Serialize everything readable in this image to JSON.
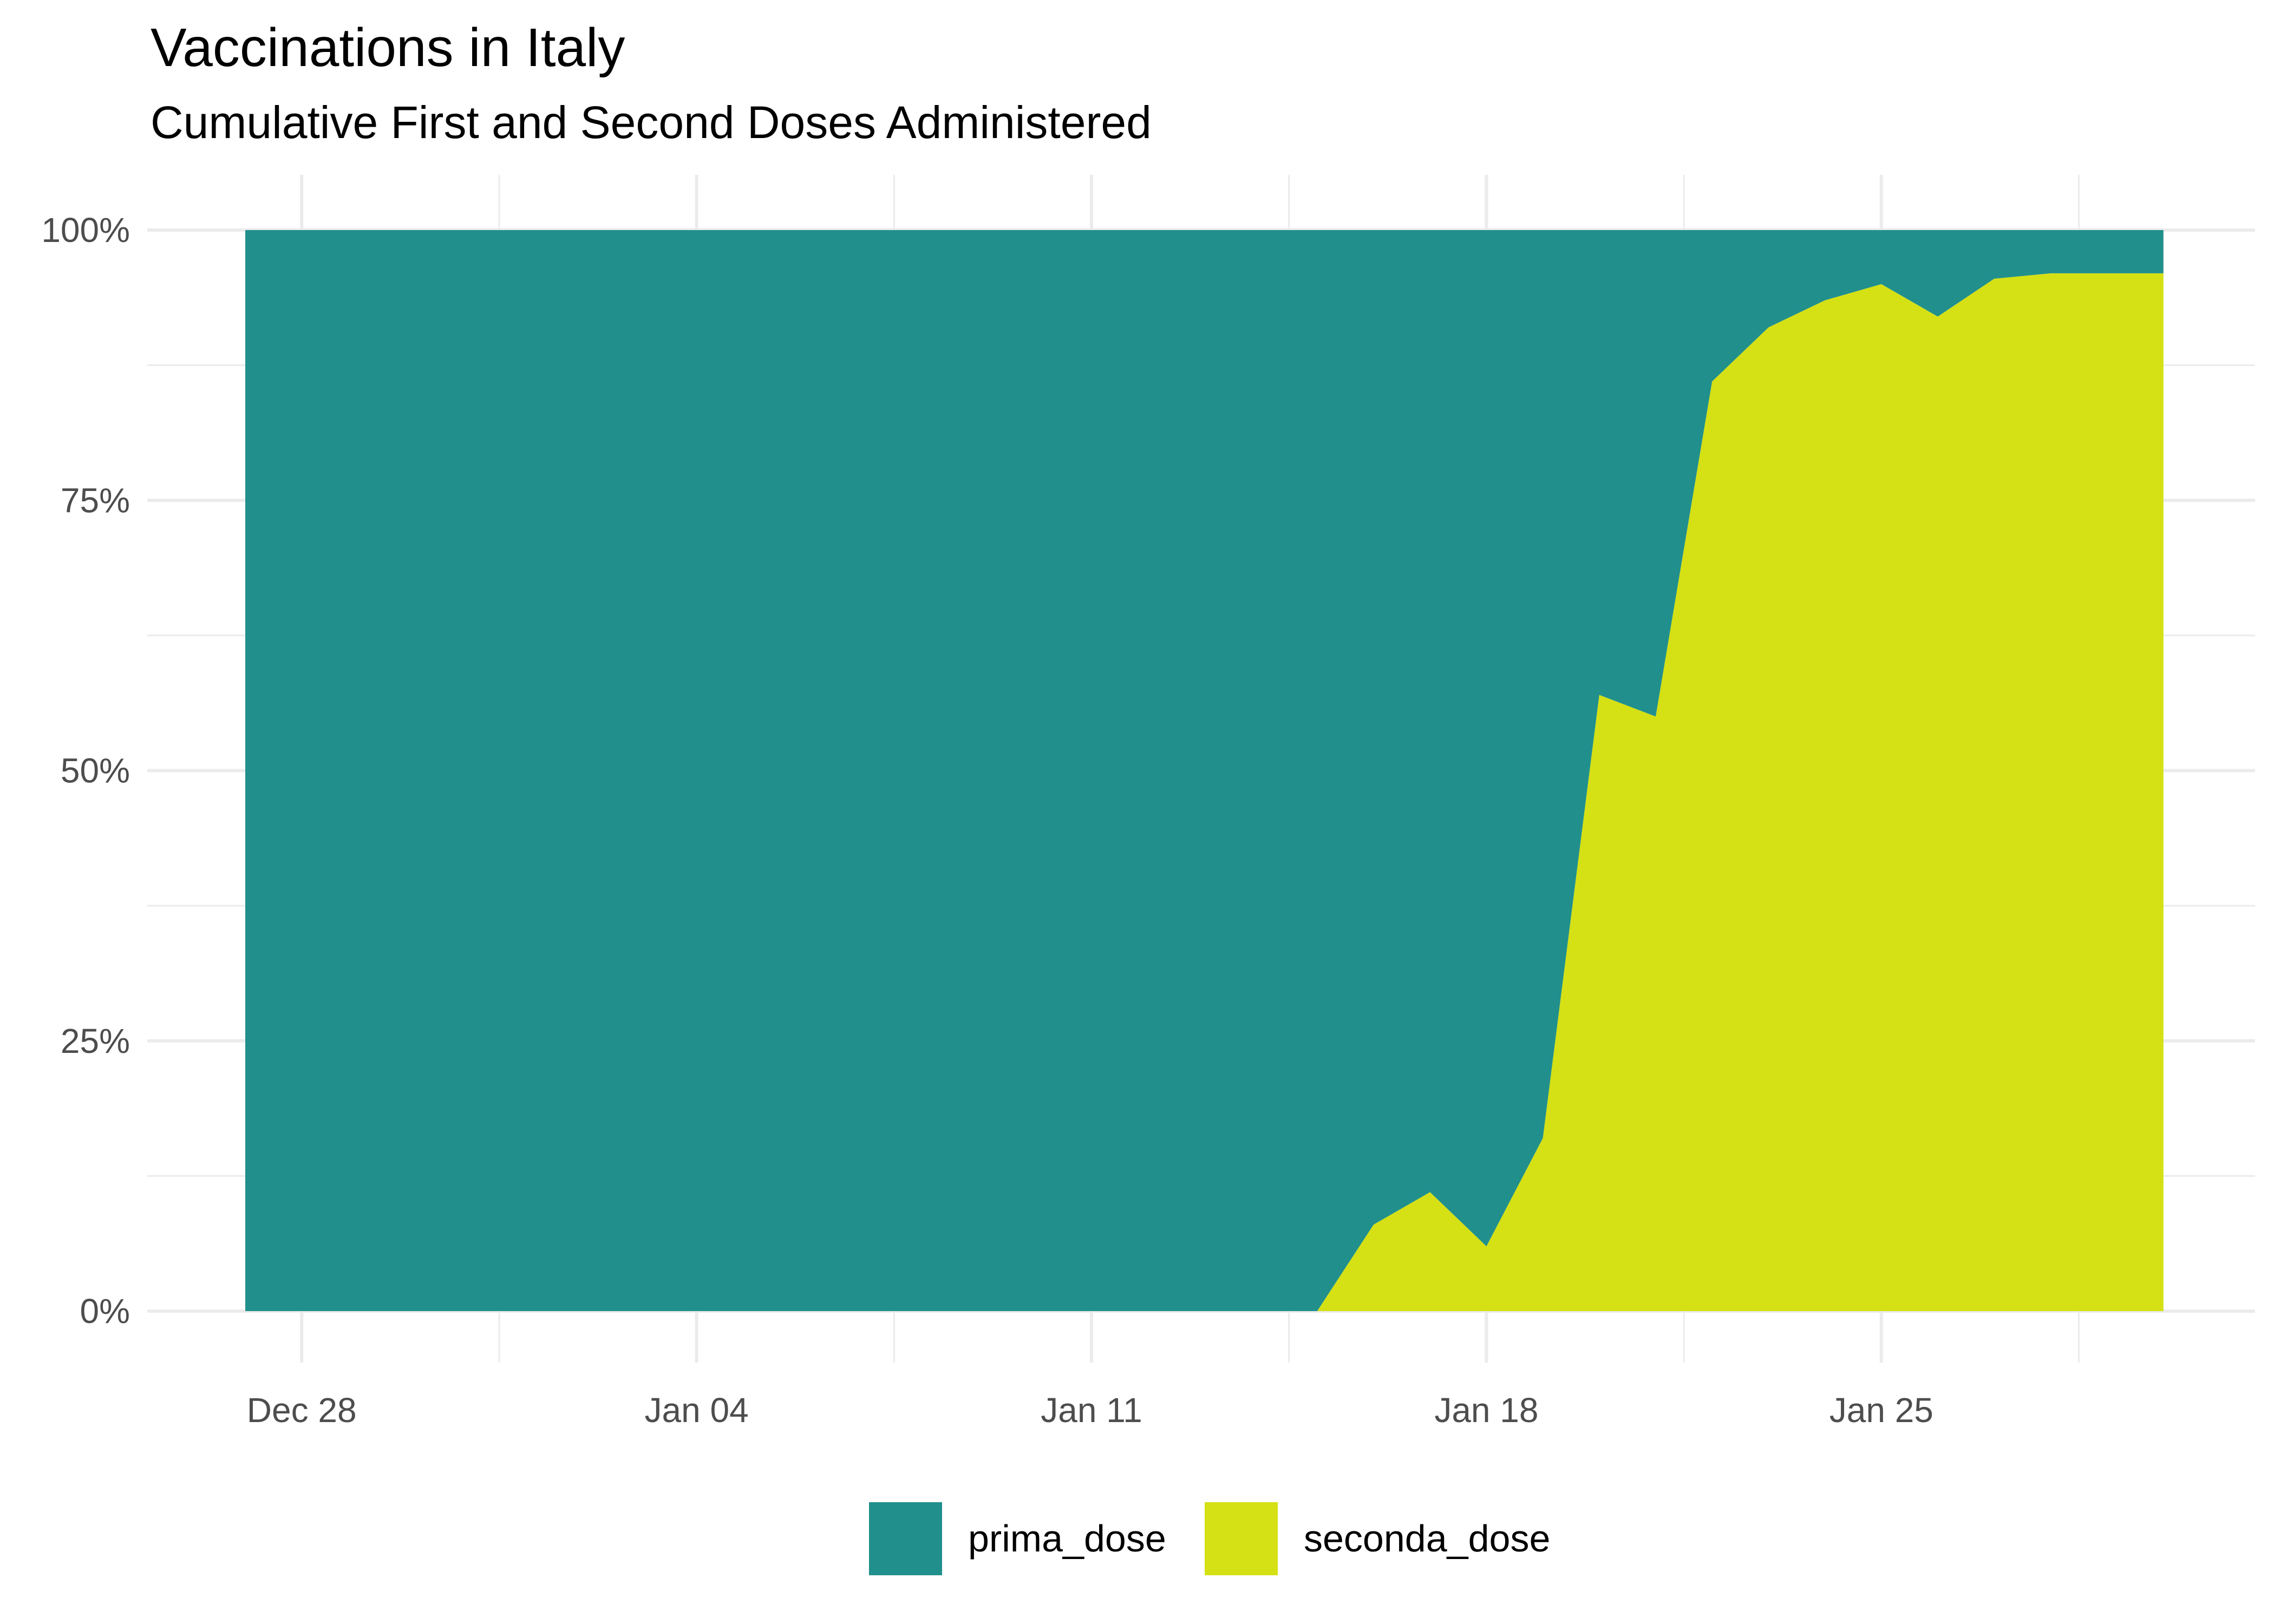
{
  "chart_data": {
    "type": "area",
    "stacking": "fill",
    "title": "Vaccinations in Italy",
    "subtitle": "Cumulative First and Second Doses Administered",
    "xlabel": "",
    "ylabel": "",
    "x": [
      "2020-12-27",
      "2020-12-28",
      "2020-12-29",
      "2020-12-30",
      "2020-12-31",
      "2021-01-01",
      "2021-01-02",
      "2021-01-03",
      "2021-01-04",
      "2021-01-05",
      "2021-01-06",
      "2021-01-07",
      "2021-01-08",
      "2021-01-09",
      "2021-01-10",
      "2021-01-11",
      "2021-01-12",
      "2021-01-13",
      "2021-01-14",
      "2021-01-15",
      "2021-01-16",
      "2021-01-17",
      "2021-01-18",
      "2021-01-19",
      "2021-01-20",
      "2021-01-21",
      "2021-01-22",
      "2021-01-23",
      "2021-01-24",
      "2021-01-25",
      "2021-01-26",
      "2021-01-27",
      "2021-01-28",
      "2021-01-29",
      "2021-01-30"
    ],
    "x_ticks": [
      {
        "date": "2020-12-28",
        "label": "Dec 28"
      },
      {
        "date": "2021-01-04",
        "label": "Jan 04"
      },
      {
        "date": "2021-01-11",
        "label": "Jan 11"
      },
      {
        "date": "2021-01-18",
        "label": "Jan 18"
      },
      {
        "date": "2021-01-25",
        "label": "Jan 25"
      }
    ],
    "y_ticks": [
      {
        "value": 0,
        "label": "0%"
      },
      {
        "value": 0.25,
        "label": "25%"
      },
      {
        "value": 0.5,
        "label": "50%"
      },
      {
        "value": 0.75,
        "label": "75%"
      },
      {
        "value": 1,
        "label": "100%"
      }
    ],
    "ylim": [
      0,
      1
    ],
    "series": [
      {
        "name": "prima_dose",
        "color": "#21908C",
        "values": [
          1,
          1,
          1,
          1,
          1,
          1,
          1,
          1,
          1,
          1,
          1,
          1,
          1,
          1,
          1,
          1,
          1,
          1,
          1,
          1,
          0.92,
          0.89,
          0.94,
          0.84,
          0.43,
          0.45,
          0.14,
          0.09,
          0.065,
          0.05,
          0.08,
          0.045,
          0.04,
          0.04,
          0.04
        ]
      },
      {
        "name": "seconda_dose",
        "color": "#D5E015",
        "values": [
          0,
          0,
          0,
          0,
          0,
          0,
          0,
          0,
          0,
          0,
          0,
          0,
          0,
          0,
          0,
          0,
          0,
          0,
          0,
          0,
          0.08,
          0.11,
          0.06,
          0.16,
          0.57,
          0.55,
          0.86,
          0.91,
          0.935,
          0.95,
          0.92,
          0.955,
          0.96,
          0.96,
          0.96
        ]
      }
    ],
    "grid": true,
    "legend": {
      "position": "bottom"
    }
  }
}
